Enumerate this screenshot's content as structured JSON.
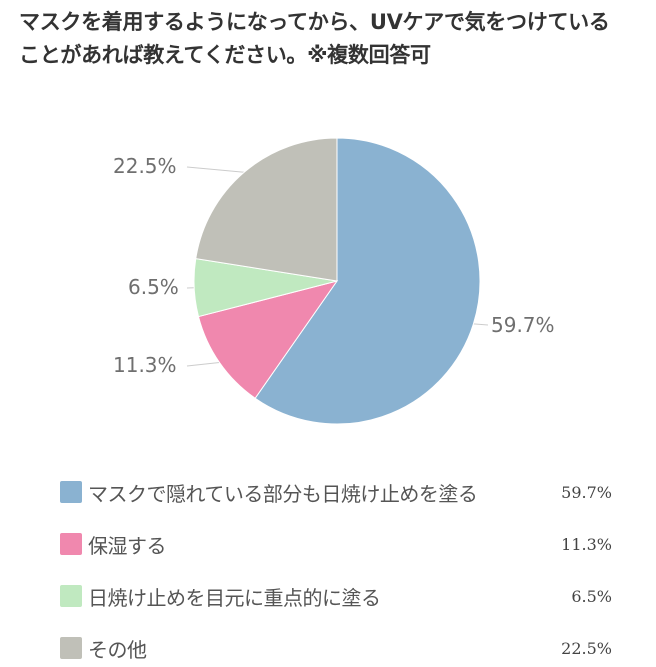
{
  "header": {
    "title_line1": "マスクを着用するようになってから、UVケアで気をつけている",
    "title_line2": "ことがあれば教えてください。※複数回答可"
  },
  "chart_data": {
    "type": "pie",
    "title": "マスクを着用するようになってから、UVケアで気をつけていることがあれば教えてください。※複数回答可",
    "categories": [
      "マスクで隠れている部分も日焼け止めを塗る",
      "保湿する",
      "日焼け止めを目元に重点的に塗る",
      "その他"
    ],
    "values": [
      59.7,
      11.3,
      6.5,
      22.5
    ],
    "unit": "%",
    "colors": [
      "#8ab2d1",
      "#f088ae",
      "#c0e9c0",
      "#c0c0b8"
    ],
    "start_angle": "12 o'clock, clockwise",
    "legend_position": "bottom"
  },
  "slice_labels": [
    {
      "text": "59.7%"
    },
    {
      "text": "11.3%"
    },
    {
      "text": "6.5%"
    },
    {
      "text": "22.5%"
    }
  ],
  "legend": {
    "items": [
      {
        "label": "マスクで隠れている部分も日焼け止めを塗る",
        "value": "59.7%",
        "color": "#8ab2d1"
      },
      {
        "label": "保湿する",
        "value": "11.3%",
        "color": "#f088ae"
      },
      {
        "label": "日焼け止めを目元に重点的に塗る",
        "value": "6.5%",
        "color": "#c0e9c0"
      },
      {
        "label": "その他",
        "value": "22.5%",
        "color": "#c0c0b8"
      }
    ]
  }
}
